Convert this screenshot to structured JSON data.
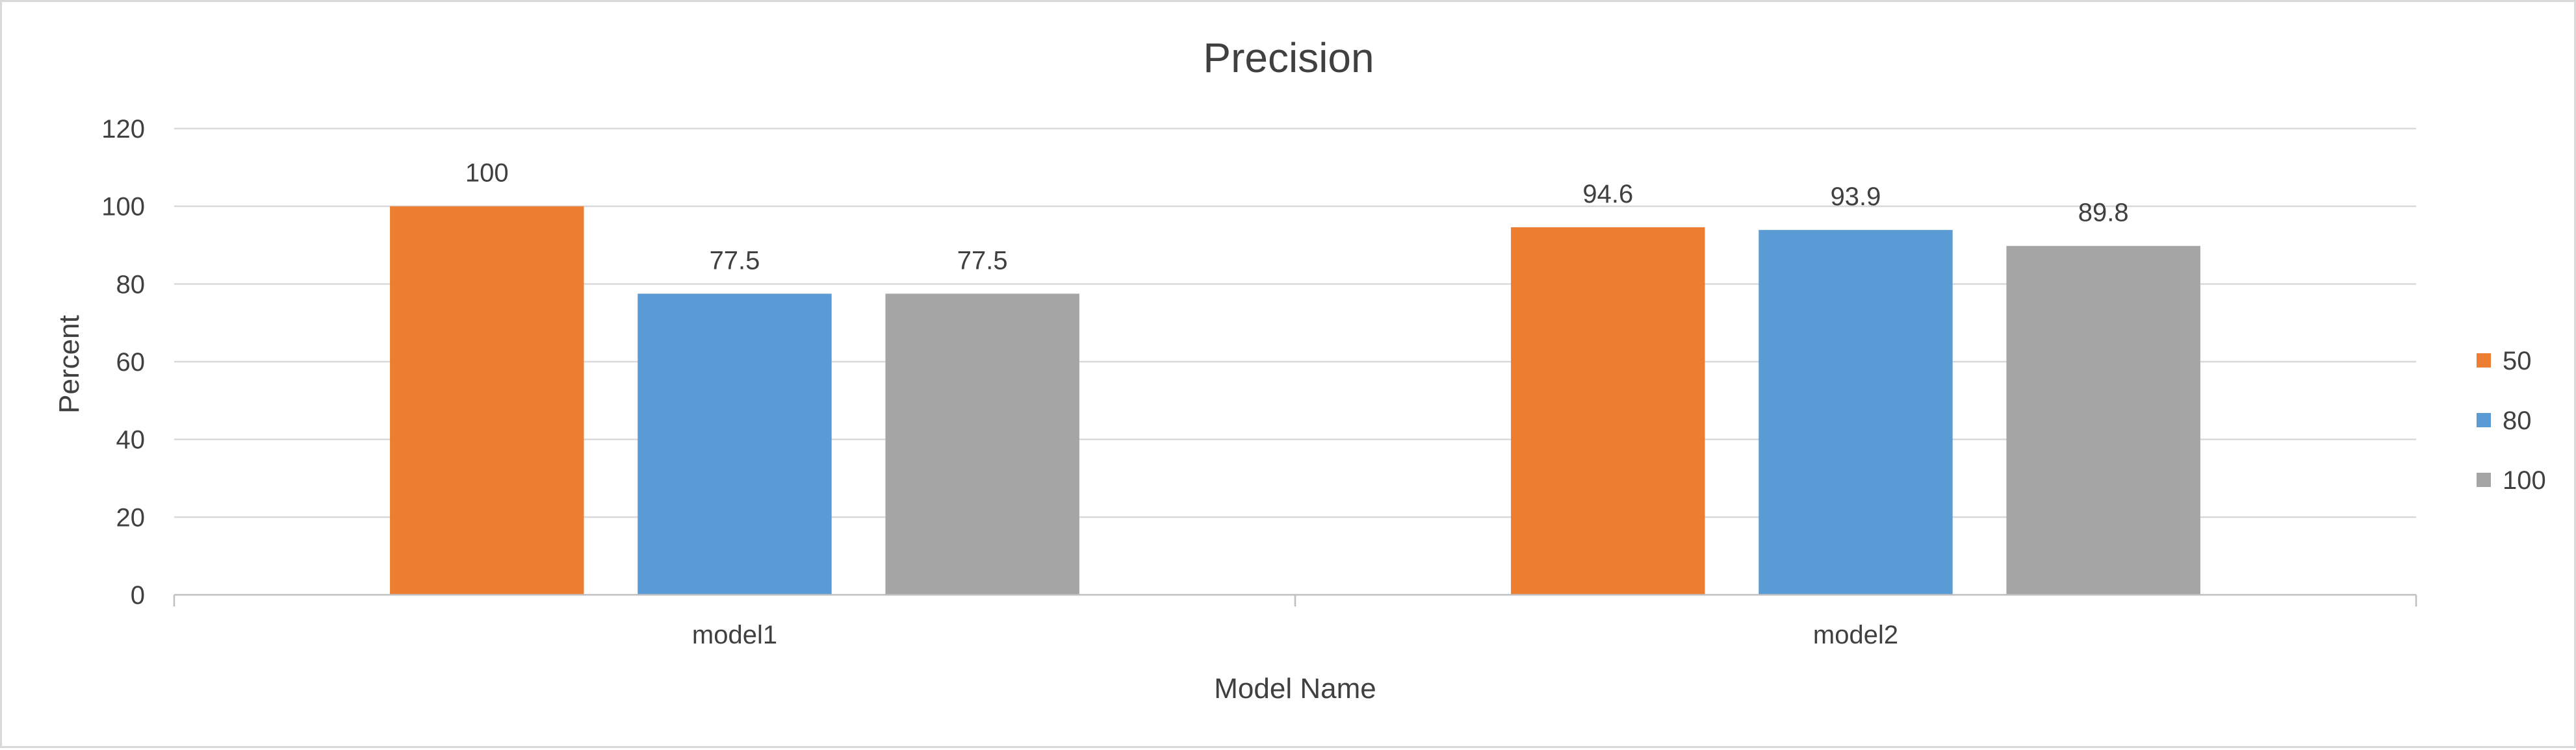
{
  "chart_data": {
    "type": "bar",
    "title": "Precision",
    "xlabel": "Model Name",
    "ylabel": "Percent",
    "categories": [
      "model1",
      "model2"
    ],
    "series": [
      {
        "name": "50",
        "values": [
          100,
          94.6
        ],
        "color": "#ED7D31"
      },
      {
        "name": "80",
        "values": [
          77.5,
          93.9
        ],
        "color": "#5B9BD5"
      },
      {
        "name": "100",
        "values": [
          77.5,
          89.8
        ],
        "color": "#A5A5A5"
      }
    ],
    "ylim": [
      0,
      120
    ],
    "yticks": [
      0,
      20,
      40,
      60,
      80,
      100,
      120
    ],
    "grid": true,
    "legend_position": "right"
  }
}
